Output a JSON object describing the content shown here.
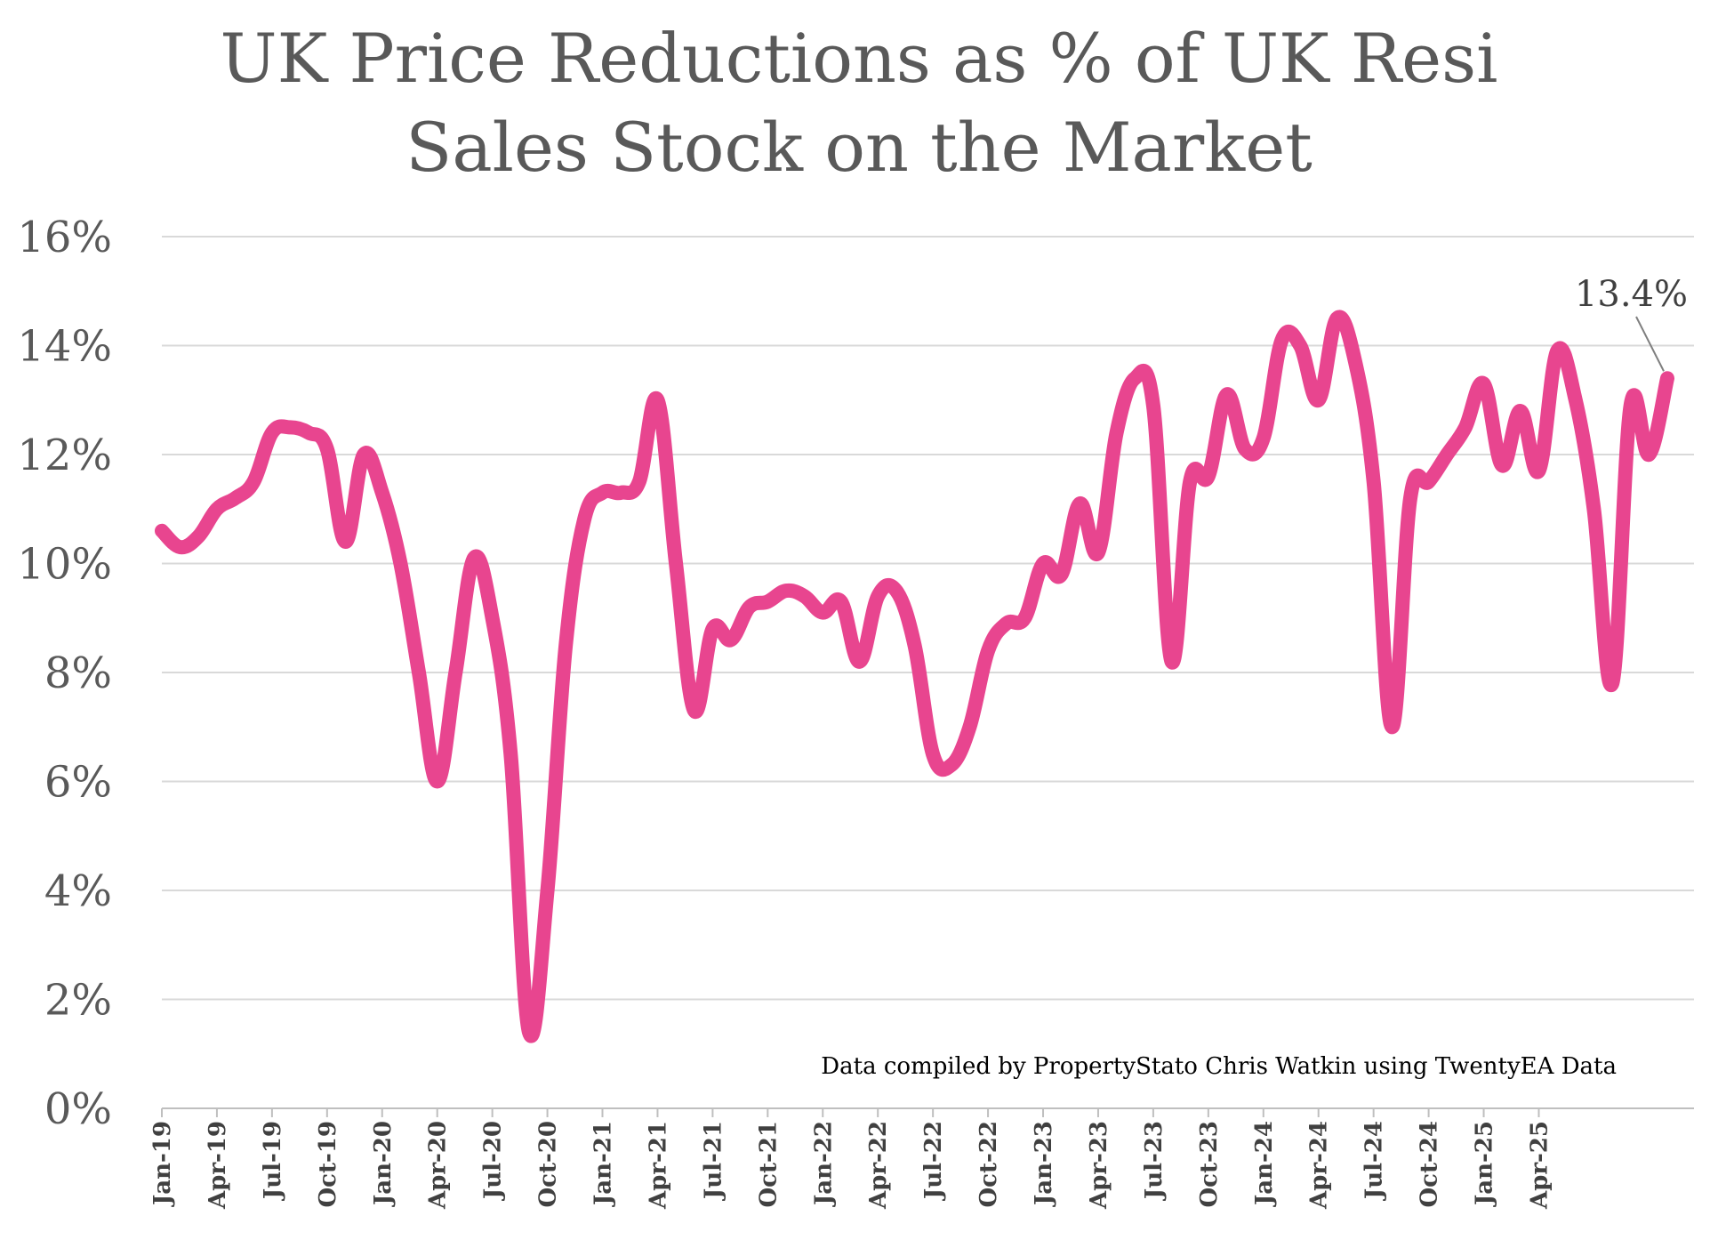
{
  "chart_data": {
    "type": "line",
    "title_lines": [
      "UK Price Reductions as % of UK Resi",
      "Sales Stock on the Market"
    ],
    "xlabel": "",
    "ylabel": "",
    "ylim": [
      0,
      16
    ],
    "y_ticks": [
      "0%",
      "2%",
      "4%",
      "6%",
      "8%",
      "10%",
      "12%",
      "14%",
      "16%"
    ],
    "x_tick_labels": [
      "Jan-19",
      "Apr-19",
      "Jul-19",
      "Oct-19",
      "Jan-20",
      "Apr-20",
      "Jul-20",
      "Oct-20",
      "Jan-21",
      "Apr-21",
      "Jul-21",
      "Oct-21",
      "Jan-22",
      "Apr-22",
      "Jul-22",
      "Oct-22",
      "Jan-23",
      "Apr-23",
      "Jul-23",
      "Oct-23",
      "Jan-24",
      "Apr-24",
      "Jul-24",
      "Oct-24",
      "Jan-25",
      "Apr-25"
    ],
    "grid": true,
    "line_color": "#E8458F",
    "grid_color": "#D9D9D9",
    "series": [
      {
        "values": [
          10.6,
          10.3,
          10.5,
          11.0,
          11.2,
          11.5,
          12.4,
          12.5,
          12.4,
          12.1,
          10.4,
          12.0,
          11.3,
          10.0,
          8.0,
          6.0,
          8.0,
          10.1,
          9.0,
          6.5,
          1.4,
          4.0,
          8.5,
          10.8,
          11.3,
          11.3,
          11.5,
          13.0,
          10.0,
          7.3,
          8.8,
          8.6,
          9.2,
          9.3,
          9.5,
          9.4,
          9.1,
          9.3,
          8.2,
          9.4,
          9.5,
          8.5,
          6.5,
          6.3,
          7.0,
          8.4,
          8.9,
          9.0,
          10.0,
          9.8,
          11.1,
          10.2,
          12.4,
          13.4,
          12.9,
          8.2,
          11.5,
          11.6,
          13.1,
          12.1,
          12.3,
          14.1,
          14.0,
          13.0,
          14.5,
          13.7,
          11.5,
          7.0,
          11.2,
          11.5,
          12.0,
          12.5,
          13.3,
          11.8,
          12.8,
          11.7,
          13.9,
          13.0,
          11.0,
          7.8,
          12.9,
          12.0,
          13.4
        ]
      }
    ],
    "annotations": [
      {
        "text": "13.4%",
        "point": "last"
      },
      {
        "text": "Data compiled by PropertyStato Chris Watkin using TwentyEA Data",
        "placement": "bottom-right"
      }
    ]
  }
}
